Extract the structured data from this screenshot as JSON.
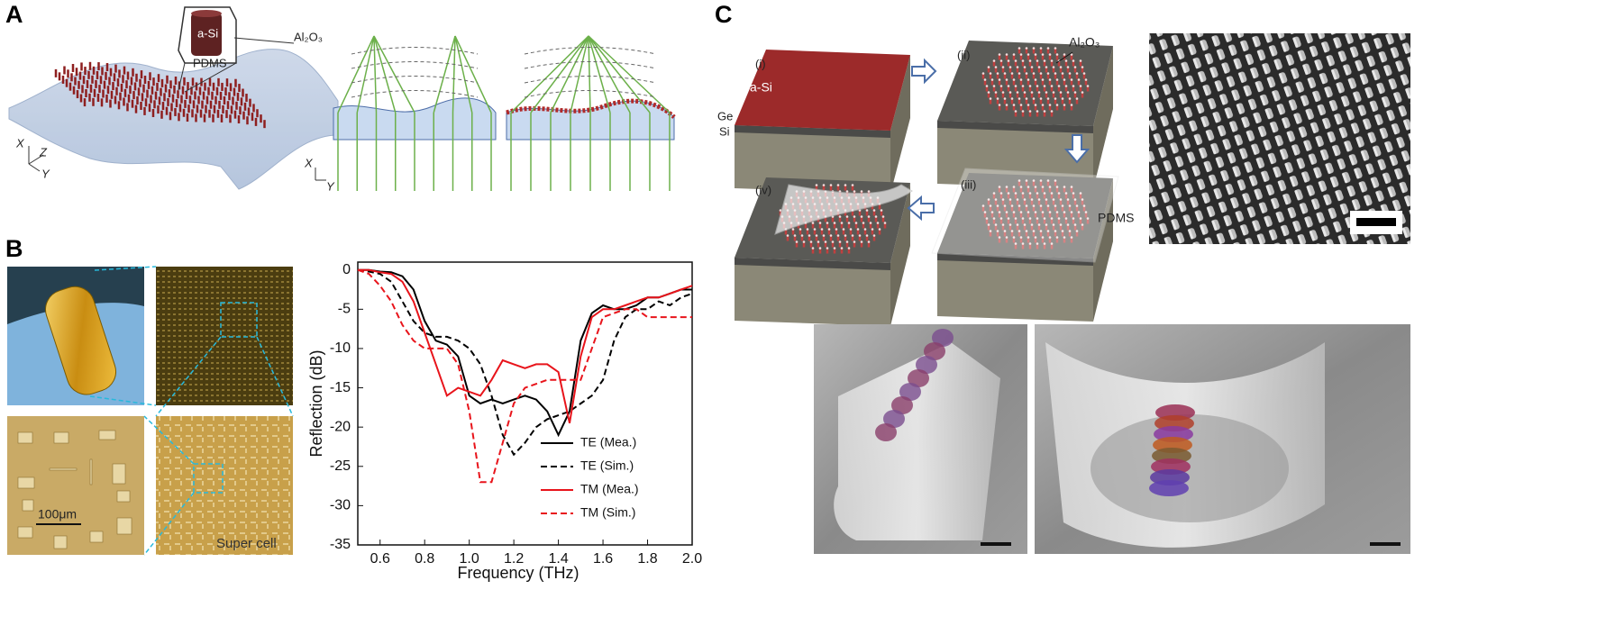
{
  "panel_a": {
    "label": "A",
    "inset_core": "a-Si",
    "inset_shell": "Al₂O₃",
    "inset_substrate": "PDMS",
    "axes_3d": [
      "X",
      "Z",
      "Y"
    ],
    "axes_2d": [
      "X",
      "Y"
    ]
  },
  "panel_b": {
    "label": "B",
    "scale_bar": "100μm",
    "super_cell": "Super cell"
  },
  "chart_data": {
    "type": "line",
    "x_label": "Frequency (THz)",
    "y_label": "Reflection (dB)",
    "x": [
      0.5,
      0.55,
      0.6,
      0.65,
      0.7,
      0.75,
      0.8,
      0.85,
      0.9,
      0.95,
      1.0,
      1.05,
      1.1,
      1.15,
      1.2,
      1.25,
      1.3,
      1.35,
      1.4,
      1.45,
      1.5,
      1.55,
      1.6,
      1.65,
      1.7,
      1.75,
      1.8,
      1.85,
      1.9,
      1.95,
      2.0
    ],
    "series": [
      {
        "name": "TE (Mea.)",
        "color": "#000000",
        "style": "solid",
        "values": [
          0,
          0,
          -0.2,
          -0.3,
          -0.8,
          -2.5,
          -6.5,
          -9,
          -9.5,
          -11,
          -16,
          -17,
          -16.5,
          -17,
          -16.5,
          -16,
          -16.5,
          -18,
          -21,
          -18,
          -9,
          -5.5,
          -4.5,
          -5,
          -5,
          -4.5,
          -3.5,
          -3.5,
          -3,
          -2.5,
          -2.5
        ]
      },
      {
        "name": "TE (Sim.)",
        "color": "#000000",
        "style": "dashed",
        "values": [
          0,
          -0.2,
          -0.5,
          -1.5,
          -4,
          -6.5,
          -8,
          -8.5,
          -8.5,
          -9,
          -10,
          -12,
          -16,
          -21,
          -23.5,
          -22,
          -20,
          -19,
          -18.5,
          -18,
          -17,
          -16,
          -14,
          -9,
          -6,
          -5,
          -5,
          -4,
          -4.5,
          -3.5,
          -3
        ]
      },
      {
        "name": "TM (Mea.)",
        "color": "#e8141b",
        "style": "solid",
        "values": [
          0,
          0,
          -0.3,
          -0.5,
          -1.5,
          -4,
          -8,
          -12,
          -16,
          -15,
          -15.5,
          -16,
          -14,
          -11.5,
          -12,
          -12.5,
          -12,
          -12,
          -13,
          -19.5,
          -11,
          -6,
          -5,
          -5,
          -4.5,
          -4,
          -3.5,
          -3.5,
          -3,
          -2.5,
          -2
        ]
      },
      {
        "name": "TM (Sim.)",
        "color": "#e8141b",
        "style": "dashed",
        "values": [
          0,
          -0.5,
          -2,
          -4,
          -7,
          -9,
          -10,
          -10,
          -10,
          -12,
          -18,
          -27,
          -27,
          -22,
          -17,
          -15,
          -14.5,
          -14,
          -14,
          -14,
          -14,
          -10,
          -6,
          -5.5,
          -5,
          -5,
          -6,
          -6,
          -6,
          -6,
          -6
        ]
      }
    ],
    "xlim": [
      0.5,
      2.0
    ],
    "ylim": [
      -35,
      1
    ],
    "xticks": [
      0.6,
      0.8,
      {
        "value": 1,
        "label": "1.0"
      },
      1.2,
      1.4,
      1.6,
      1.8,
      {
        "value": 2,
        "label": "2.0"
      }
    ],
    "yticks": [
      0,
      -5,
      -10,
      -15,
      -20,
      -25,
      -30,
      -35
    ],
    "legend": "lower right"
  },
  "panel_c": {
    "label": "C",
    "steps": [
      "(i)",
      "(ii)",
      "(iii)",
      "(iv)"
    ],
    "top_layer": "a-Si",
    "layer_ge": "Ge",
    "layer_si": "Si",
    "shell": "Al₂O₃",
    "film": "PDMS"
  }
}
